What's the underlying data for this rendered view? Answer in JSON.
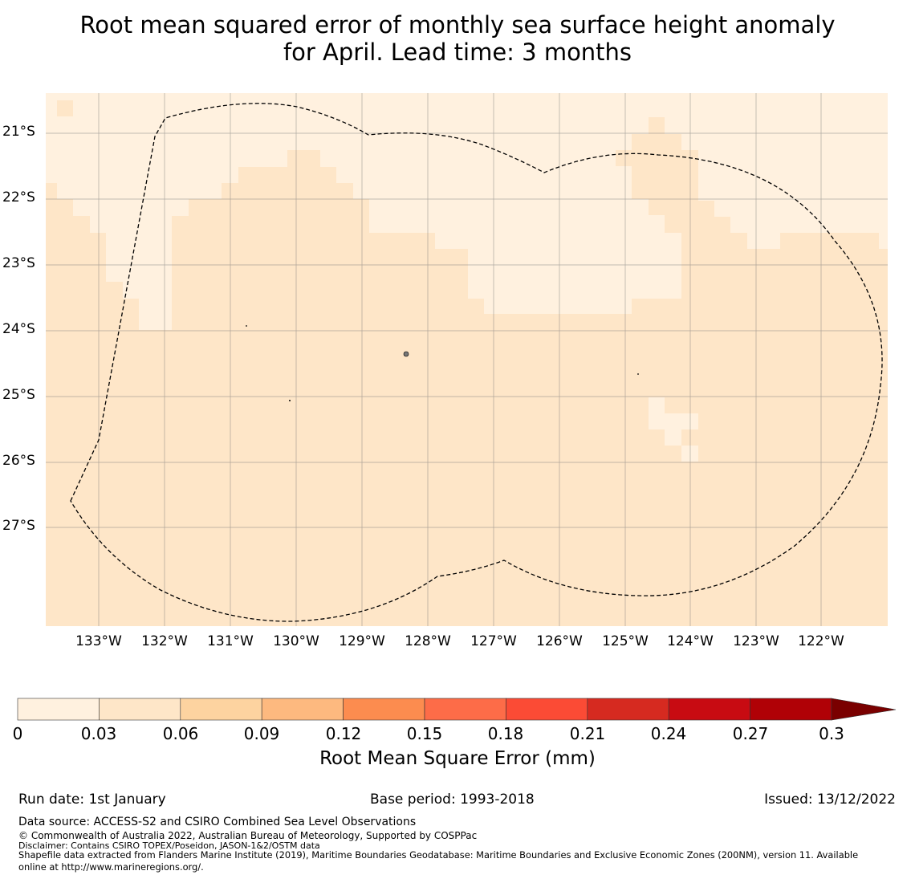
{
  "title": {
    "line1": "Root mean squared error of monthly sea surface height anomaly",
    "line2": "for April. Lead time: 3 months"
  },
  "map": {
    "lat_labels": [
      "21°S",
      "22°S",
      "23°S",
      "24°S",
      "25°S",
      "26°S",
      "27°S"
    ],
    "lon_labels": [
      "133°W",
      "132°W",
      "131°W",
      "130°W",
      "129°W",
      "128°W",
      "127°W",
      "126°W",
      "125°W",
      "124°W",
      "123°W",
      "122°W"
    ],
    "colors": {
      "bin_0_003": "#fff1df",
      "bin_003_006": "#fee6c8",
      "grid": "#777777",
      "boundary": "#000000"
    }
  },
  "colorbar": {
    "label": "Root Mean Square Error (mm)",
    "ticks": [
      "0",
      "0.03",
      "0.06",
      "0.09",
      "0.12",
      "0.15",
      "0.18",
      "0.21",
      "0.24",
      "0.27",
      "0.3"
    ],
    "colors": [
      "#fff1df",
      "#fee6c8",
      "#fdd3a0",
      "#fdb97f",
      "#fc8c4f",
      "#fd6c48",
      "#fb4b35",
      "#d62a20",
      "#c80b12",
      "#b00106",
      "#7a0000"
    ]
  },
  "footer": {
    "run_date": "Run date: 1st January",
    "base_period": "Base period: 1993-2018",
    "issued": "Issued: 13/12/2022",
    "data_source": "Data source: ACCESS-S2 and CSIRO Combined Sea Level Observations",
    "copyright": "© Commonwealth of Australia 2022, Australian Bureau of Meteorology, Supported by COSPPac",
    "disclaimer": "Disclaimer: Contains CSIRO TOPEX/Poseidon, JASON-1&2/OSTM data",
    "shapefile_line1": "Shapefile data extracted from Flanders Marine Institute (2019), Maritime Boundaries Geodatabase: Maritime Boundaries and Exclusive Economic Zones (200NM), version 11. Available",
    "shapefile_line2": "online at http://www.marineregions.org/."
  }
}
